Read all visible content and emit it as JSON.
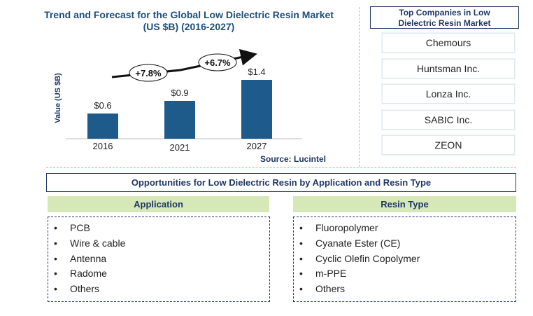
{
  "chart_data": {
    "type": "bar",
    "title": "Trend and Forecast for the Global Low Dielectric Resin Market (US $B) (2016-2027)",
    "ylabel": "Value (US $B)",
    "categories": [
      "2016",
      "2021",
      "2027"
    ],
    "values": [
      0.6,
      0.9,
      1.4
    ],
    "value_labels": [
      "$0.6",
      "$0.9",
      "$1.4"
    ],
    "growth_annotations": [
      "+7.8%",
      "+6.7%"
    ],
    "bar_color": "#1f5b8a",
    "ylim": [
      0,
      1.6
    ]
  },
  "chart": {
    "title_line1": "Trend and Forecast for the Global Low Dielectric Resin Market",
    "title_line2": "(US $B) (2016-2027)",
    "source": "Source: Lucintel"
  },
  "companies": {
    "title_line1": "Top Companies in Low",
    "title_line2": "Dielectric Resin Market",
    "items": [
      "Chemours",
      "Huntsman Inc.",
      "Lonza Inc.",
      "SABIC Inc.",
      "ZEON"
    ]
  },
  "opportunities": {
    "title": "Opportunities for Low Dielectric Resin by Application and Resin Type",
    "application": {
      "header": "Application",
      "items": [
        "PCB",
        "Wire & cable",
        "Antenna",
        "Radome",
        "Others"
      ]
    },
    "resin_type": {
      "header": "Resin Type",
      "items": [
        "Fluoropolymer",
        "Cyanate Ester (CE)",
        "Cyclic Olefin Copolymer",
        "m-PPE",
        "Others"
      ]
    },
    "bullet": "•"
  }
}
